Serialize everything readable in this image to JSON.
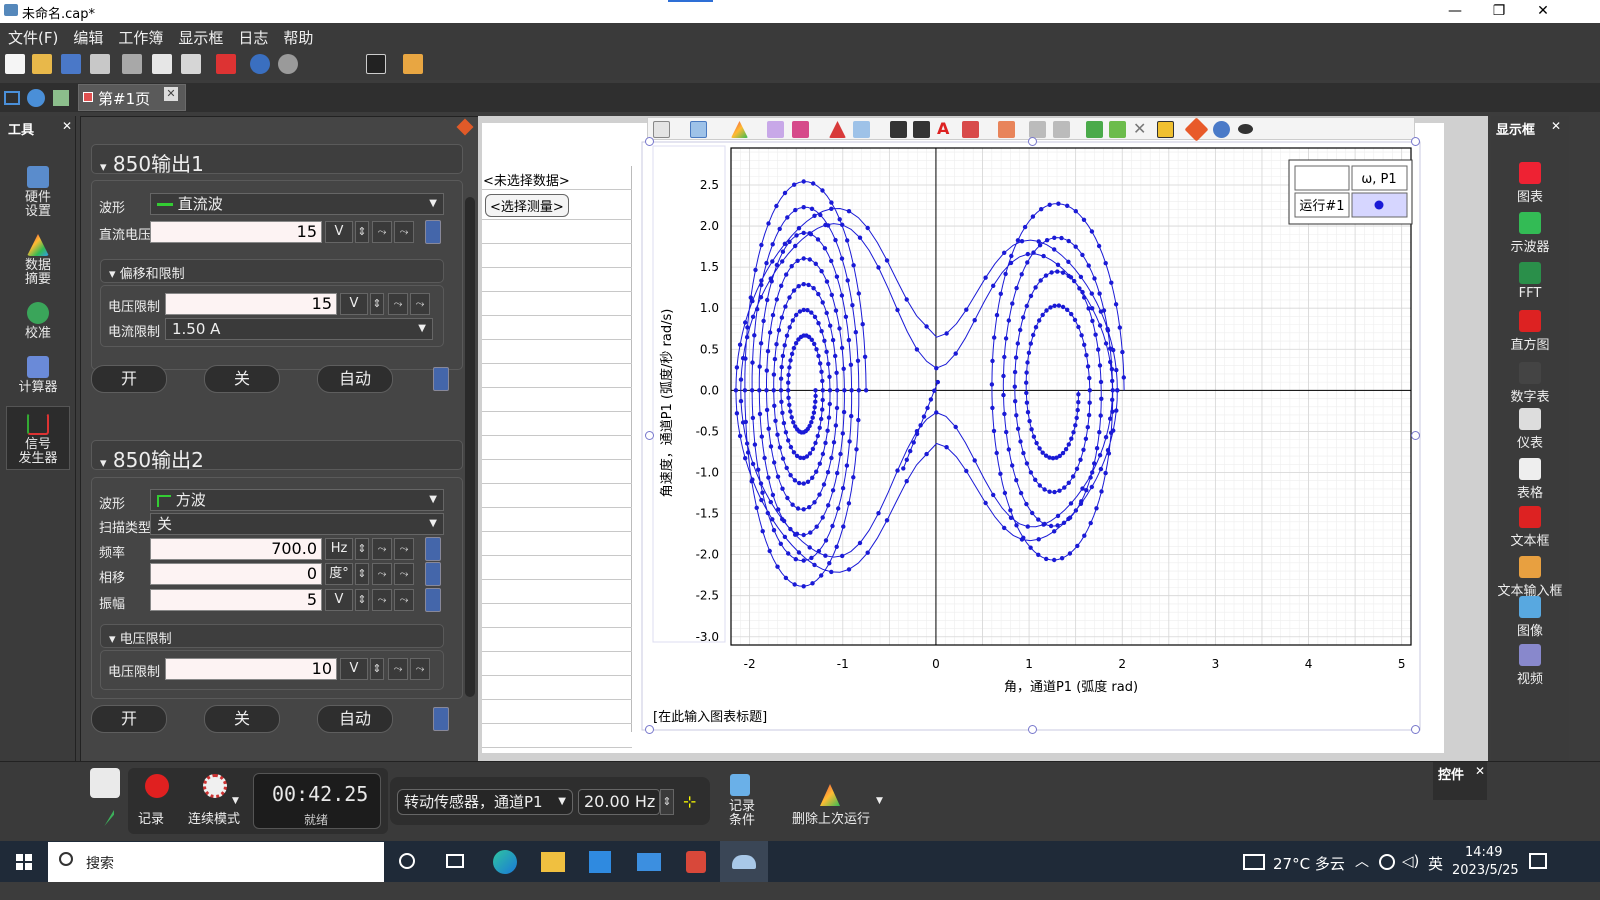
{
  "window": {
    "title": "未命名.cap*",
    "minimize": "—",
    "maximize": "❐",
    "close": "✕"
  },
  "menu": [
    "文件(F)",
    "编辑",
    "工作簿",
    "显示框",
    "日志",
    "帮助"
  ],
  "tab": {
    "label": "第#1页"
  },
  "tools_panel": {
    "title": "工具",
    "items": [
      {
        "label": "硬件\n设置",
        "icon": "hardware-icon"
      },
      {
        "label": "数据\n摘要",
        "icon": "data-summary-icon"
      },
      {
        "label": "校准",
        "icon": "calibration-icon"
      },
      {
        "label": "计算器",
        "icon": "calculator-icon"
      },
      {
        "label": "信号\n发生器",
        "icon": "signal-generator-icon"
      }
    ]
  },
  "output1": {
    "title": "850输出1",
    "waveform_label": "波形",
    "waveform": "直流波",
    "dc_label": "直流电压",
    "dc_value": "15",
    "dc_unit": "V",
    "limits_title": "偏移和限制",
    "vlimit_label": "电压限制",
    "vlimit_value": "15",
    "vlimit_unit": "V",
    "ilimit_label": "电流限制",
    "ilimit_value": "1.50 A",
    "on": "开",
    "off": "关",
    "auto": "自动"
  },
  "output2": {
    "title": "850输出2",
    "waveform_label": "波形",
    "waveform": "方波",
    "sweep_label": "扫描类型",
    "sweep": "关",
    "freq_label": "频率",
    "freq_value": "700.0",
    "freq_unit": "Hz",
    "phase_label": "相移",
    "phase_value": "0",
    "phase_unit": "度°",
    "amp_label": "振幅",
    "amp_value": "5",
    "amp_unit": "V",
    "limits_title": "电压限制",
    "vlimit_label": "电压限制",
    "vlimit_value": "10",
    "vlimit_unit": "V",
    "on": "开",
    "off": "关",
    "auto": "自动"
  },
  "table": {
    "no_data": "<未选择数据>",
    "select_measure": "<选择测量>"
  },
  "graph": {
    "ylabel": "角速度，通道P1 (弧度/秒 rad/s)",
    "xlabel": "角，通道P1 (弧度 rad)",
    "title_placeholder": "[在此输入图表标题]",
    "legend_header": "ω, P1",
    "legend_run": "运行#1",
    "xticks": [
      "-2",
      "-1",
      "0",
      "1",
      "2",
      "3",
      "4",
      "5"
    ],
    "yticks": [
      "2.5",
      "2.0",
      "1.5",
      "1.0",
      "0.5",
      "0.0",
      "-0.5",
      "-1.0",
      "-1.5",
      "-2.0",
      "-2.5",
      "-3.0"
    ]
  },
  "chart_data": {
    "type": "scatter",
    "xlabel": "角，通道P1 (弧度 rad)",
    "ylabel": "角速度，通道P1 (弧度/秒 rad/s)",
    "xlim": [
      -2.2,
      5.1
    ],
    "ylim": [
      -3.1,
      2.95
    ],
    "grid": true,
    "legend_placement": "top-right",
    "series": [
      {
        "name": "运行#1",
        "color": "#1a1ad6"
      }
    ]
  },
  "display_panel": {
    "title": "显示框",
    "items": [
      {
        "label": "图表",
        "icon": "graph-icon"
      },
      {
        "label": "示波器",
        "icon": "scope-icon"
      },
      {
        "label": "FFT",
        "icon": "fft-icon"
      },
      {
        "label": "直方图",
        "icon": "histogram-icon"
      },
      {
        "label": "数字表",
        "icon": "digits-icon"
      },
      {
        "label": "仪表",
        "icon": "meter-icon"
      },
      {
        "label": "表格",
        "icon": "table-icon"
      },
      {
        "label": "文本框",
        "icon": "text-box-icon"
      },
      {
        "label": "文本输入框",
        "icon": "text-entry-icon"
      },
      {
        "label": "图像",
        "icon": "image-icon"
      },
      {
        "label": "视频",
        "icon": "video-icon"
      }
    ]
  },
  "controls": {
    "record": "记录",
    "continuous": "连续模式",
    "timer": "00:42.25",
    "status": "就绪",
    "sensor": "转动传感器，通道P1",
    "rate": "20.00 Hz",
    "record_cond": "记录\n条件",
    "delete_last": "删除上次运行",
    "panel_title": "控件"
  },
  "taskbar": {
    "search": "搜索",
    "weather": "27°C 多云",
    "ime": "英",
    "time": "14:49",
    "date": "2023/5/25"
  }
}
